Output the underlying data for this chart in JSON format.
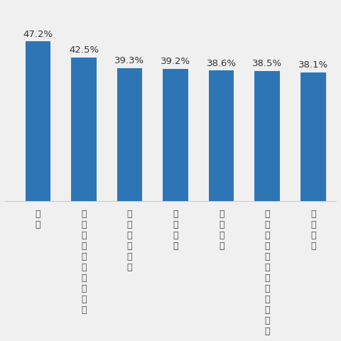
{
  "categories": [
    "銀行",
    "小学校・中学校・高校",
    "旅館・ホテル",
    "通信販売",
    "動物痄院",
    "情報通信・インターネット",
    "専門学校"
  ],
  "values": [
    47.2,
    42.5,
    39.3,
    39.2,
    38.6,
    38.5,
    38.1
  ],
  "bar_color": "#2e75b6",
  "value_labels": [
    "47.2%",
    "42.5%",
    "39.3%",
    "39.2%",
    "38.6%",
    "38.5%",
    "38.1%"
  ],
  "ylim": [
    0,
    58
  ],
  "background_color": "#f0f0f0",
  "bar_width": 0.55,
  "label_fontsize": 9,
  "value_fontsize": 9.5
}
